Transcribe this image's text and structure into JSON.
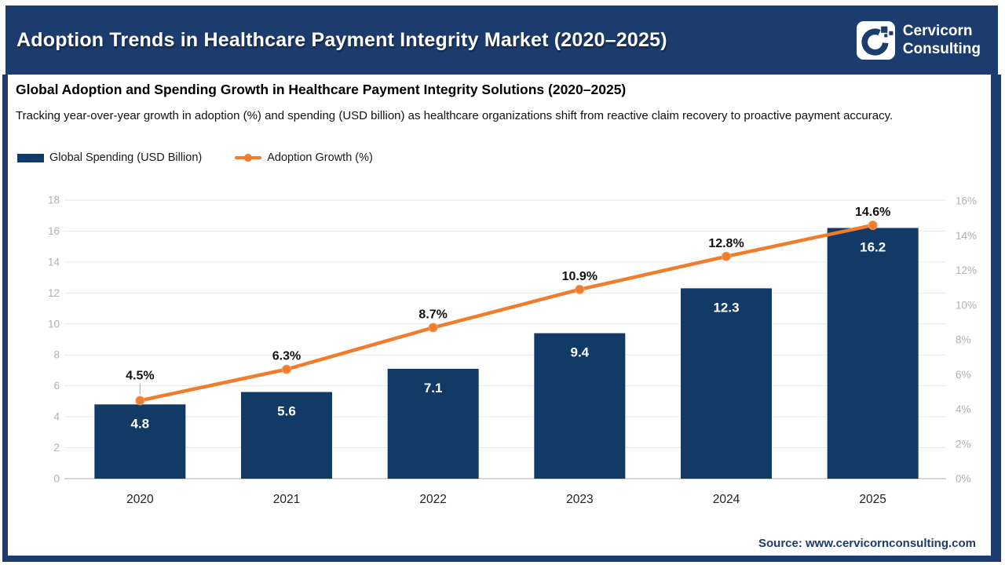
{
  "header": {
    "title": "Adoption Trends in Healthcare Payment Integrity Market (2020–2025)",
    "brand_line1": "Cervicorn",
    "brand_line2": "Consulting"
  },
  "subtitle": "Global Adoption and Spending Growth in Healthcare Payment Integrity Solutions (2020–2025)",
  "description": "Tracking year-over-year growth in adoption (%) and spending (USD billion) as healthcare organizations shift from reactive claim recovery to proactive payment accuracy.",
  "legend": {
    "items": [
      {
        "label": "Global Spending (USD Billion)",
        "marker": "bar-swatch"
      },
      {
        "label": "Adoption Growth (%)",
        "marker": "line-swatch"
      }
    ]
  },
  "source": "Source: www.cervicornconsulting.com",
  "colors": {
    "brand_navy": "#1d3c6e",
    "bar_navy": "#123a67",
    "accent_orange": "#ee7d2e",
    "grid_line": "#e9e9e9",
    "axis_text": "#b1b1b1"
  },
  "chart_data": {
    "type": "bar+line",
    "title": "Global Adoption and Spending Growth in Healthcare Payment Integrity Solutions (2020–2025)",
    "categories": [
      "2020",
      "2021",
      "2022",
      "2023",
      "2024",
      "2025"
    ],
    "series": [
      {
        "name": "Global Spending (USD Billion)",
        "type": "bar",
        "axis": "left",
        "color": "#123a67",
        "values": [
          4.8,
          5.6,
          7.1,
          9.4,
          12.3,
          16.2
        ],
        "labels": [
          "4.8",
          "5.6",
          "7.1",
          "9.4",
          "12.3",
          "16.2"
        ]
      },
      {
        "name": "Adoption Growth (%)",
        "type": "line",
        "axis": "right",
        "color": "#ee7d2e",
        "values": [
          4.5,
          6.3,
          8.7,
          10.9,
          12.8,
          14.6
        ],
        "labels": [
          "4.5%",
          "6.3%",
          "8.7%",
          "10.9%",
          "12.8%",
          "14.6%"
        ]
      }
    ],
    "left_axis": {
      "min": 0,
      "max": 18,
      "step": 2
    },
    "right_axis": {
      "min": 0,
      "max": 16,
      "step": 2,
      "suffix": "%"
    },
    "grid": true,
    "legend_position": "top-left"
  }
}
